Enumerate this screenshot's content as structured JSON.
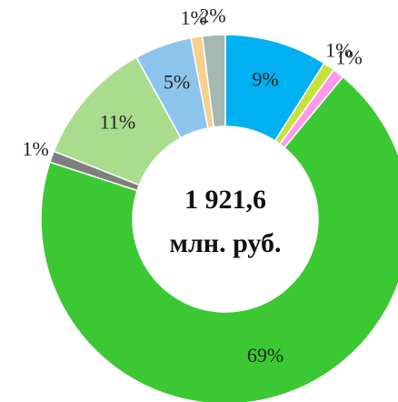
{
  "chart_data": {
    "type": "donut",
    "center_label": [
      "1 921,6",
      "млн. руб."
    ],
    "values": [
      9,
      1,
      1,
      69,
      1,
      11,
      5,
      1,
      2
    ],
    "value_labels": [
      "9%",
      "1%",
      "1%",
      "69%",
      "1%",
      "11%",
      "5%",
      "1%",
      "2%"
    ],
    "colors": [
      "#00b0f0",
      "#c8e03c",
      "#ff99ee",
      "#3cc832",
      "#7f7f7f",
      "#a9dc8c",
      "#8cc4ec",
      "#f4d08c",
      "#a6b8b2"
    ]
  }
}
